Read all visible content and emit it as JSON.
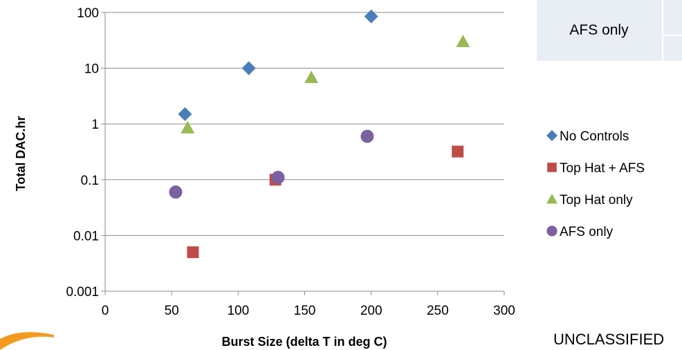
{
  "chart_data": {
    "type": "scatter",
    "xlabel": "Burst Size (delta T in deg C)",
    "ylabel": "Total DAC.hr",
    "xlim": [
      0,
      300
    ],
    "x_ticks": [
      0,
      50,
      100,
      150,
      200,
      250,
      300
    ],
    "ylim": [
      0.001,
      100
    ],
    "y_scale": "log",
    "y_ticks": [
      0.001,
      0.01,
      0.1,
      1,
      10,
      100
    ],
    "y_tick_labels": [
      "0.001",
      "0.01",
      "0.1",
      "1",
      "10",
      "100"
    ],
    "grid": "horizontal",
    "legend_position": "right",
    "series": [
      {
        "name": "No Controls",
        "marker": "diamond",
        "color": "#4a7ebb",
        "points": [
          [
            60,
            1.5
          ],
          [
            108,
            10
          ],
          [
            200,
            85
          ]
        ]
      },
      {
        "name": "Top Hat + AFS",
        "marker": "square",
        "color": "#be4b48",
        "points": [
          [
            66,
            0.005
          ],
          [
            128,
            0.1
          ],
          [
            265,
            0.32
          ]
        ]
      },
      {
        "name": "Top Hat only",
        "marker": "triangle",
        "color": "#98b954",
        "points": [
          [
            62,
            0.85
          ],
          [
            155,
            6.8
          ],
          [
            269,
            30
          ]
        ]
      },
      {
        "name": "AFS only",
        "marker": "circle",
        "color": "#7d60a0",
        "points": [
          [
            53,
            0.06
          ],
          [
            130,
            0.11
          ],
          [
            197,
            0.6
          ]
        ]
      }
    ]
  },
  "table_fragment": {
    "cell_label": "AFS only"
  },
  "footer": {
    "classification_text": "UNCLASSIFIED"
  },
  "colors": {
    "table_bg": "#e9edf4",
    "gridline": "#8c8c8c",
    "swoosh": "#f39a1f"
  }
}
